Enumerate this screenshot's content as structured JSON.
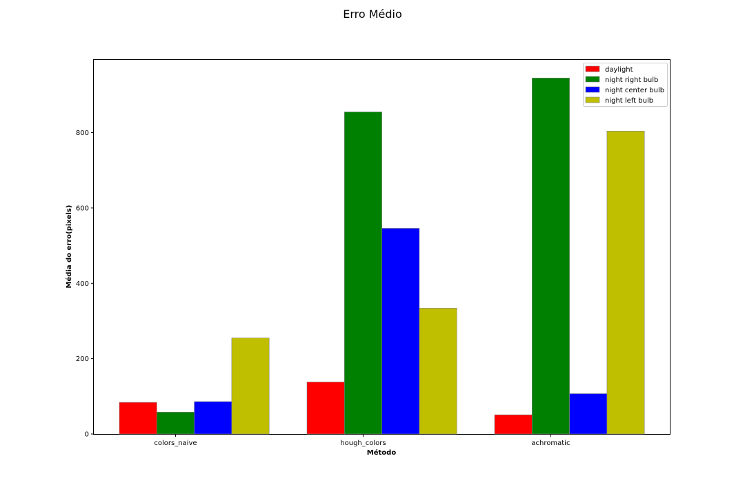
{
  "chart_data": {
    "type": "bar",
    "title": "Erro Médio",
    "xlabel": "Método",
    "ylabel": "Média do erro(pixels)",
    "categories": [
      "colors_naive",
      "hough_colors",
      "achromatic"
    ],
    "series": [
      {
        "name": "daylight",
        "color": "#ff0000",
        "values": [
          84,
          138,
          51
        ]
      },
      {
        "name": "night right bulb",
        "color": "#008000",
        "values": [
          58,
          855,
          945
        ]
      },
      {
        "name": "night center bulb",
        "color": "#0000ff",
        "values": [
          86,
          546,
          107
        ]
      },
      {
        "name": "night left bulb",
        "color": "#bfbf00",
        "values": [
          255,
          334,
          804
        ]
      }
    ],
    "ylim": [
      0,
      993
    ],
    "yticks": [
      0,
      200,
      400,
      600,
      800
    ],
    "grid": false,
    "legend_position": "top-right"
  }
}
